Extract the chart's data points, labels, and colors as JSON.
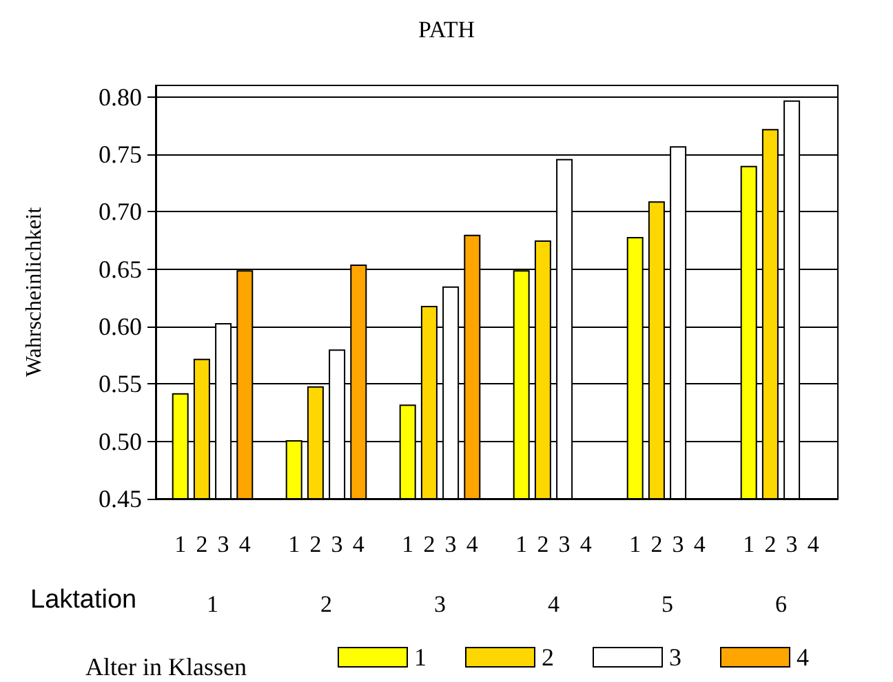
{
  "chart_data": {
    "type": "bar",
    "title": "PATH",
    "xlabel": "Laktation",
    "ylabel": "Wahrscheinlichkeit",
    "legend_title": "Alter in Klassen",
    "categories": [
      "1",
      "2",
      "3",
      "4",
      "5",
      "6"
    ],
    "series": [
      {
        "name": "1",
        "color": "#ffff00",
        "values": [
          0.542,
          0.501,
          0.532,
          0.649,
          0.678,
          0.74
        ]
      },
      {
        "name": "2",
        "color": "#ffd700",
        "values": [
          0.572,
          0.548,
          0.618,
          0.675,
          0.709,
          0.772
        ]
      },
      {
        "name": "3",
        "color": "#ffffff",
        "values": [
          0.603,
          0.58,
          0.635,
          0.746,
          0.757,
          0.797
        ]
      },
      {
        "name": "4",
        "color": "#ffa500",
        "values": [
          0.649,
          0.654,
          0.68,
          null,
          null,
          null
        ]
      }
    ],
    "ylim": [
      0.45,
      0.81
    ],
    "yticks": [
      0.45,
      {
        "value": 0.5,
        "label": "0.50"
      },
      0.55,
      {
        "value": 0.6,
        "label": "0.60"
      },
      0.65,
      {
        "value": 0.7,
        "label": "0.70"
      },
      0.75,
      {
        "value": 0.8,
        "label": "0.80"
      }
    ],
    "grid": "y",
    "legend": "bottom"
  }
}
